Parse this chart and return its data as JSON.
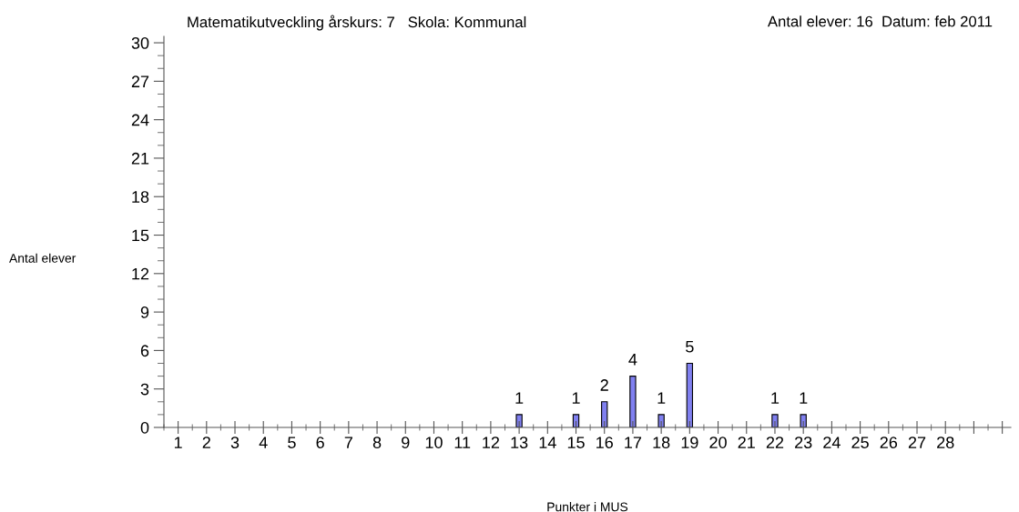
{
  "chart_data": {
    "type": "bar",
    "title": "Matematikutveckling årskurs: 7   Skola: Kommunal",
    "annotations": [
      "Antal elever: 16  Datum: feb 2011"
    ],
    "xlabel": "Punkter i MUS",
    "ylabel": "Antal elever",
    "x": [
      13,
      15,
      16,
      17,
      18,
      19,
      22,
      23
    ],
    "values": [
      1,
      1,
      2,
      4,
      1,
      5,
      1,
      1
    ],
    "color": "#8080f0",
    "data_labels": true,
    "grid": false,
    "legend": false,
    "xlim": [
      0.5,
      30.3
    ],
    "xticks": [
      1,
      2,
      3,
      4,
      5,
      6,
      7,
      8,
      9,
      10,
      11,
      12,
      13,
      14,
      15,
      16,
      17,
      18,
      19,
      20,
      21,
      22,
      23,
      24,
      25,
      26,
      27,
      28,
      {
        "value": 29,
        "label": null
      },
      {
        "value": 30,
        "label": null
      }
    ],
    "ylim": [
      0,
      30.5
    ],
    "yticks": [
      0,
      3,
      6,
      9,
      12,
      15,
      18,
      21,
      24,
      27,
      30
    ]
  }
}
